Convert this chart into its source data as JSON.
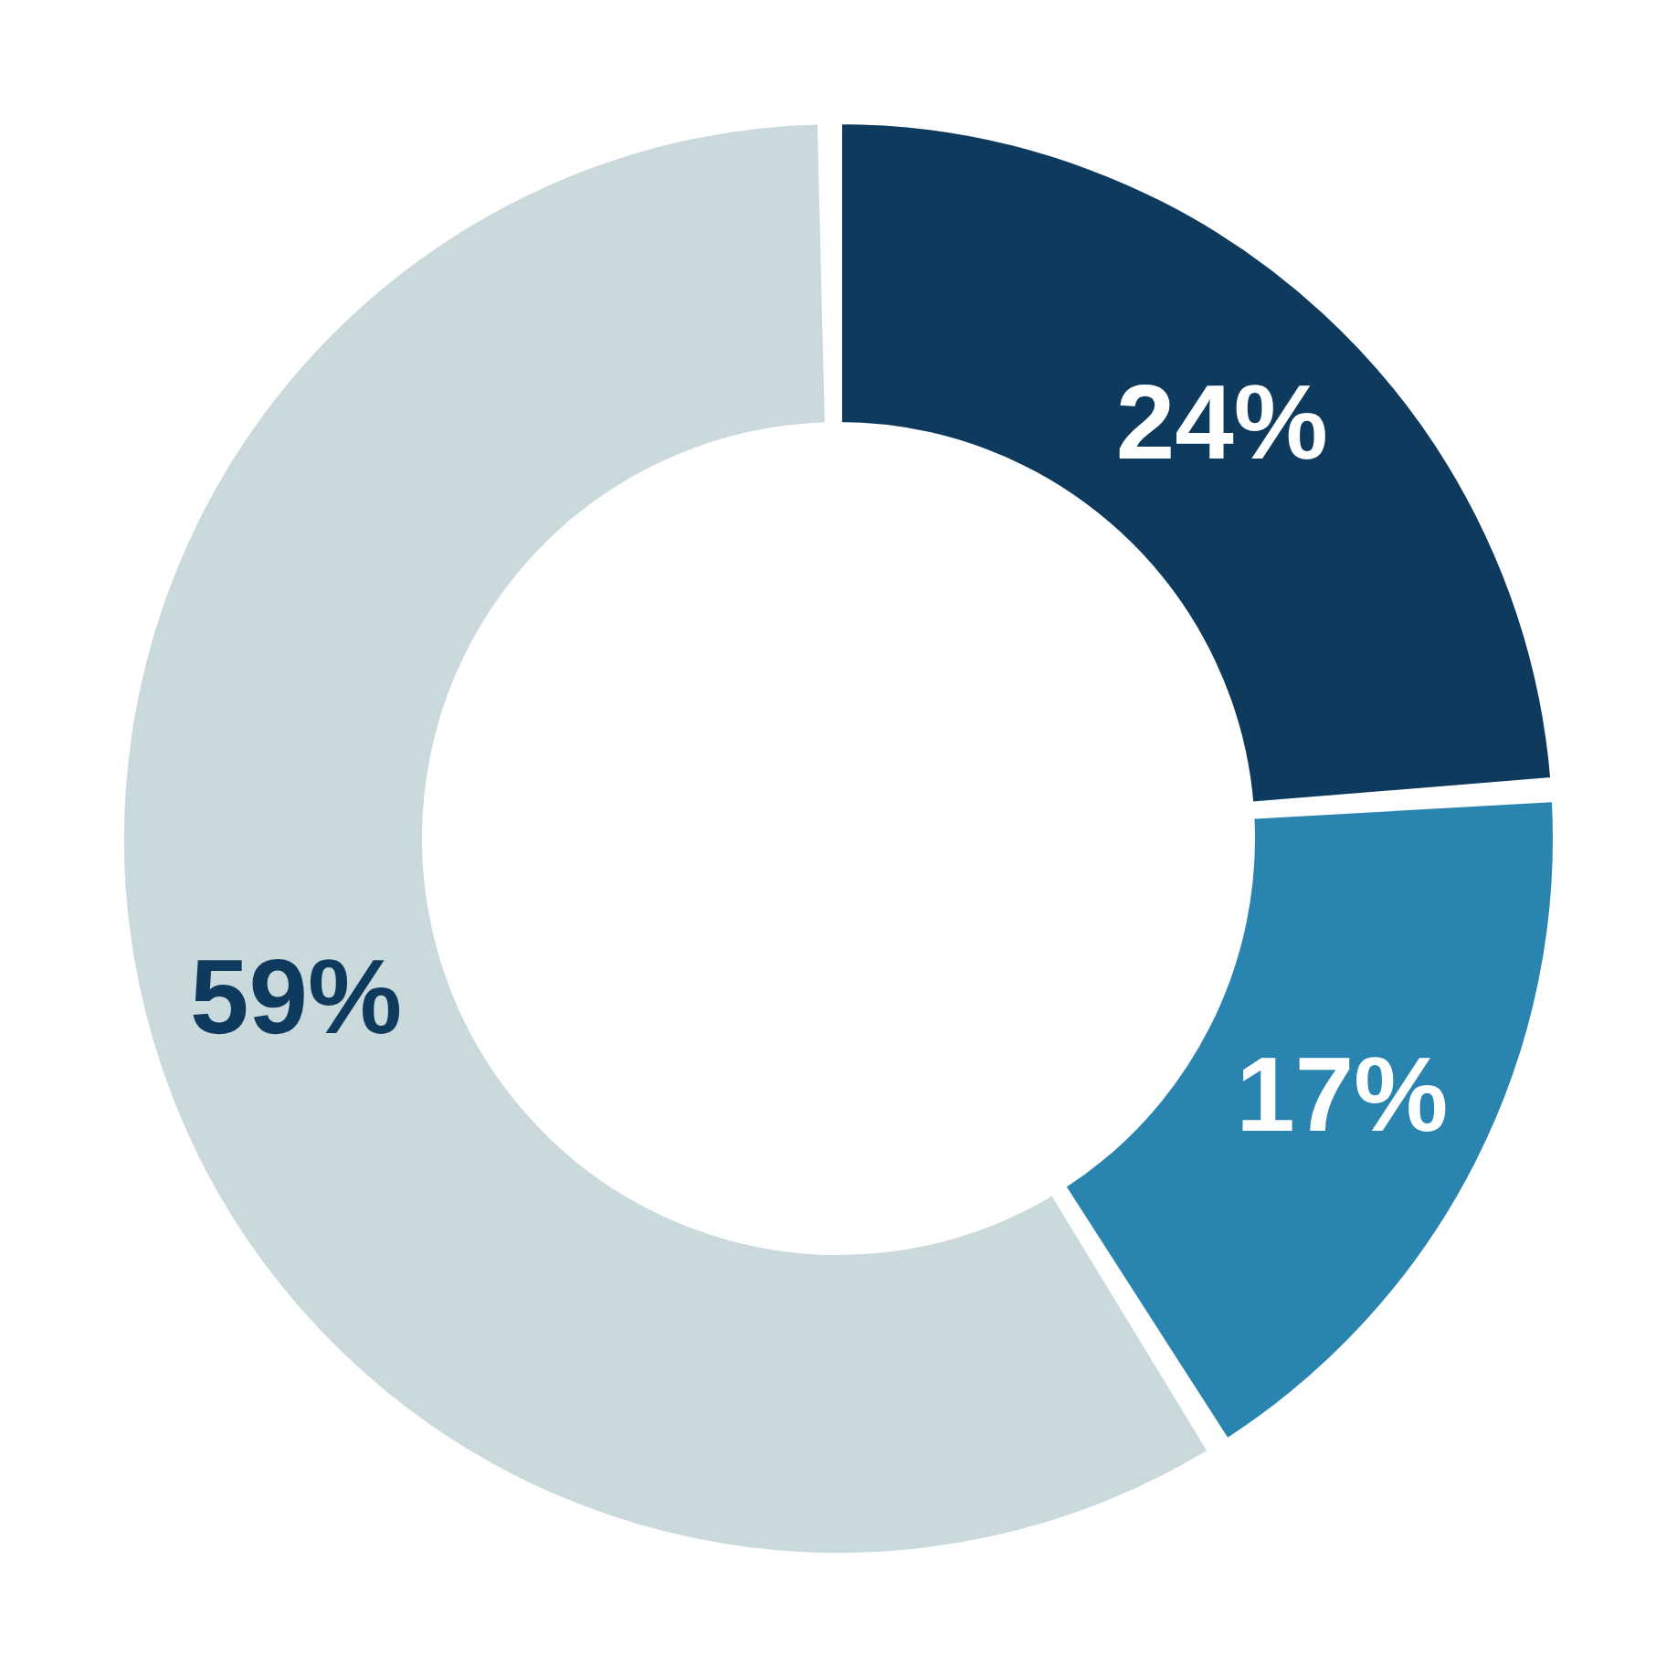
{
  "chart_data": {
    "type": "donut",
    "categories": [
      null,
      null,
      null
    ],
    "values": [
      24,
      17,
      59
    ],
    "colors": [
      "#0e3a5e",
      "#2985b0",
      "#c9d9dc"
    ],
    "value_labels": [
      "24%",
      "17%",
      "59%"
    ],
    "legend": false
  }
}
